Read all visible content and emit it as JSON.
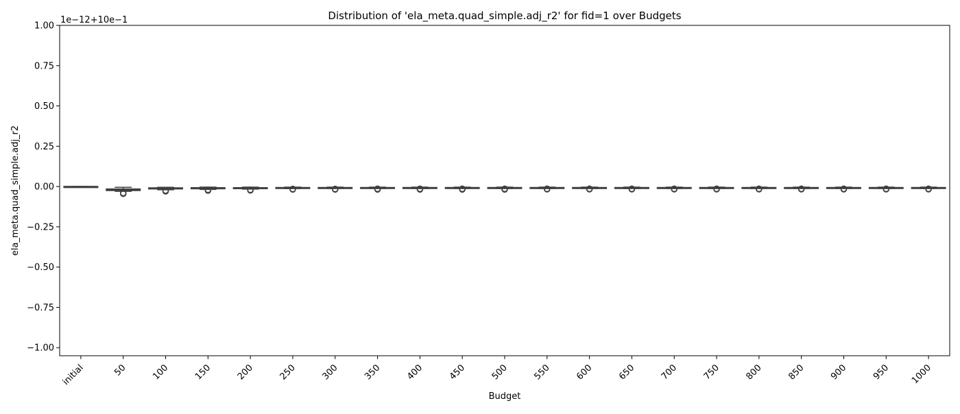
{
  "chart_data": {
    "type": "box",
    "title": "Distribution of 'ela_meta.quad_simple.adj_r2' for fid=1 over Budgets",
    "xlabel": "Budget",
    "ylabel": "ela_meta.quad_simple.adj_r2",
    "offset_label": "1e−12+10e−1",
    "categories": [
      "initial",
      "50",
      "100",
      "150",
      "200",
      "250",
      "300",
      "350",
      "400",
      "450",
      "500",
      "550",
      "600",
      "650",
      "700",
      "750",
      "800",
      "850",
      "900",
      "950",
      "1000"
    ],
    "y_ticks": [
      1.0,
      0.75,
      0.5,
      0.25,
      0.0,
      -0.25,
      -0.5,
      -0.75,
      -1.0
    ],
    "y_tick_labels": [
      "1.00",
      "0.75",
      "0.50",
      "0.25",
      "0.00",
      "−0.25",
      "−0.50",
      "−0.75",
      "−1.00"
    ],
    "ylim": [
      -1.05,
      1.0
    ],
    "grid": false,
    "legend": "none",
    "box_color": "#3f3f3f",
    "boxes": [
      {
        "category": "initial",
        "whisker_low": 0.0,
        "q1": 0.0,
        "median": 0.0,
        "q3": 0.0,
        "whisker_high": 0.0,
        "outliers": []
      },
      {
        "category": "50",
        "whisker_low": -0.03,
        "q1": -0.025,
        "median": -0.02,
        "q3": -0.015,
        "whisker_high": -0.005,
        "outliers": [
          -0.04,
          -0.045
        ]
      },
      {
        "category": "100",
        "whisker_low": -0.02,
        "q1": -0.015,
        "median": -0.012,
        "q3": -0.008,
        "whisker_high": -0.005,
        "outliers": [
          -0.025,
          -0.03
        ]
      },
      {
        "category": "150",
        "whisker_low": -0.018,
        "q1": -0.014,
        "median": -0.011,
        "q3": -0.007,
        "whisker_high": -0.004,
        "outliers": [
          -0.02,
          -0.025
        ]
      },
      {
        "category": "200",
        "whisker_low": -0.016,
        "q1": -0.013,
        "median": -0.01,
        "q3": -0.007,
        "whisker_high": -0.004,
        "outliers": [
          -0.02,
          -0.024
        ]
      },
      {
        "category": "250",
        "whisker_low": -0.013,
        "q1": -0.01,
        "median": -0.008,
        "q3": -0.006,
        "whisker_high": -0.004,
        "outliers": [
          -0.015,
          -0.018
        ]
      },
      {
        "category": "300",
        "whisker_low": -0.012,
        "q1": -0.01,
        "median": -0.008,
        "q3": -0.006,
        "whisker_high": -0.004,
        "outliers": [
          -0.015,
          -0.018
        ]
      },
      {
        "category": "350",
        "whisker_low": -0.012,
        "q1": -0.01,
        "median": -0.008,
        "q3": -0.006,
        "whisker_high": -0.004,
        "outliers": [
          -0.014,
          -0.018
        ]
      },
      {
        "category": "400",
        "whisker_low": -0.012,
        "q1": -0.01,
        "median": -0.008,
        "q3": -0.006,
        "whisker_high": -0.004,
        "outliers": [
          -0.014,
          -0.018
        ]
      },
      {
        "category": "450",
        "whisker_low": -0.012,
        "q1": -0.01,
        "median": -0.008,
        "q3": -0.006,
        "whisker_high": -0.004,
        "outliers": [
          -0.014,
          -0.018
        ]
      },
      {
        "category": "500",
        "whisker_low": -0.012,
        "q1": -0.01,
        "median": -0.008,
        "q3": -0.006,
        "whisker_high": -0.004,
        "outliers": [
          -0.014,
          -0.018
        ]
      },
      {
        "category": "550",
        "whisker_low": -0.012,
        "q1": -0.01,
        "median": -0.008,
        "q3": -0.006,
        "whisker_high": -0.004,
        "outliers": [
          -0.014,
          -0.017
        ]
      },
      {
        "category": "600",
        "whisker_low": -0.012,
        "q1": -0.01,
        "median": -0.008,
        "q3": -0.006,
        "whisker_high": -0.004,
        "outliers": [
          -0.014,
          -0.017
        ]
      },
      {
        "category": "650",
        "whisker_low": -0.012,
        "q1": -0.01,
        "median": -0.008,
        "q3": -0.006,
        "whisker_high": -0.004,
        "outliers": [
          -0.014,
          -0.017
        ]
      },
      {
        "category": "700",
        "whisker_low": -0.012,
        "q1": -0.01,
        "median": -0.008,
        "q3": -0.006,
        "whisker_high": -0.004,
        "outliers": [
          -0.014,
          -0.017
        ]
      },
      {
        "category": "750",
        "whisker_low": -0.012,
        "q1": -0.01,
        "median": -0.008,
        "q3": -0.006,
        "whisker_high": -0.004,
        "outliers": [
          -0.014,
          -0.017
        ]
      },
      {
        "category": "800",
        "whisker_low": -0.012,
        "q1": -0.01,
        "median": -0.008,
        "q3": -0.006,
        "whisker_high": -0.004,
        "outliers": [
          -0.014,
          -0.017
        ]
      },
      {
        "category": "850",
        "whisker_low": -0.012,
        "q1": -0.01,
        "median": -0.008,
        "q3": -0.006,
        "whisker_high": -0.004,
        "outliers": [
          -0.014,
          -0.017
        ]
      },
      {
        "category": "900",
        "whisker_low": -0.012,
        "q1": -0.01,
        "median": -0.008,
        "q3": -0.006,
        "whisker_high": -0.004,
        "outliers": [
          -0.014,
          -0.017
        ]
      },
      {
        "category": "950",
        "whisker_low": -0.012,
        "q1": -0.01,
        "median": -0.008,
        "q3": -0.006,
        "whisker_high": -0.004,
        "outliers": [
          -0.014,
          -0.017
        ]
      },
      {
        "category": "1000",
        "whisker_low": -0.012,
        "q1": -0.01,
        "median": -0.008,
        "q3": -0.006,
        "whisker_high": -0.004,
        "outliers": [
          -0.014,
          -0.017
        ]
      }
    ]
  }
}
